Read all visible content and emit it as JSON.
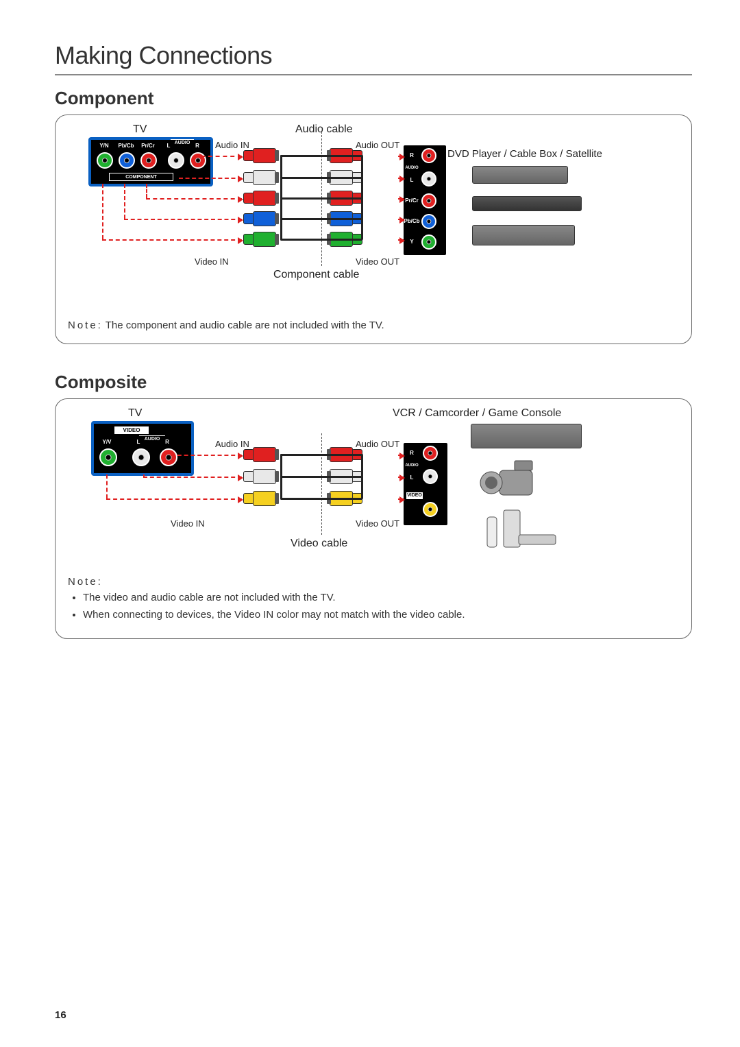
{
  "page": {
    "title": "Making Connections",
    "number": "16"
  },
  "colors": {
    "red": "#e02020",
    "white": "#e8e8e8",
    "blue_pbcb": "#1060d8",
    "green_y": "#20b030",
    "yellow": "#f5d020",
    "panel_blue": "#0a60c2",
    "dash_red": "#e02020",
    "cable_black": "#222222"
  },
  "component": {
    "heading": "Component",
    "labels": {
      "tv": "TV",
      "audio_cable": "Audio cable",
      "audio_in": "Audio IN",
      "audio_out": "Audio OUT",
      "video_in": "Video IN",
      "video_out": "Video OUT",
      "component_cable": "Component cable",
      "source_title": "DVD Player / Cable Box / Satellite"
    },
    "tv_ports": {
      "yn": "Y/N",
      "pbcb": "Pb/Cb",
      "prcr": "Pr/Cr",
      "audio_l": "L",
      "audio_r": "R",
      "audio": "AUDIO",
      "component_bar": "COMPONENT"
    },
    "src_ports": {
      "r": "R",
      "audio": "AUDIO",
      "l": "L",
      "prcr": "Pr/Cr",
      "pbcb": "Pb/Cb",
      "y": "Y"
    },
    "cables": [
      {
        "row": 0,
        "color": "#e02020"
      },
      {
        "row": 1,
        "color": "#e8e8e8"
      },
      {
        "row": 2,
        "color": "#e02020"
      },
      {
        "row": 3,
        "color": "#1060d8"
      },
      {
        "row": 4,
        "color": "#20b030"
      }
    ],
    "note_prefix": "Note:",
    "note_text": " The component and audio cable are not included with the TV."
  },
  "composite": {
    "heading": "Composite",
    "labels": {
      "tv": "TV",
      "audio_in": "Audio IN",
      "audio_out": "Audio OUT",
      "video_in": "Video IN",
      "video_out": "Video OUT",
      "video_cable": "Video cable",
      "source_title": "VCR / Camcorder / Game Console"
    },
    "tv_ports": {
      "video": "VIDEO",
      "yv": "Y/V",
      "audio": "AUDIO",
      "l": "L",
      "r": "R"
    },
    "src_ports": {
      "r": "R",
      "audio": "AUDIO",
      "l": "L",
      "video": "VIDEO"
    },
    "cables": [
      {
        "row": 0,
        "color": "#e02020"
      },
      {
        "row": 1,
        "color": "#e8e8e8"
      },
      {
        "row": 2,
        "color": "#f5d020"
      }
    ],
    "note_prefix": "Note:",
    "bullets": [
      "The video and audio cable are not included with the TV.",
      "When connecting to devices, the Video IN color may not match with the video cable."
    ]
  }
}
